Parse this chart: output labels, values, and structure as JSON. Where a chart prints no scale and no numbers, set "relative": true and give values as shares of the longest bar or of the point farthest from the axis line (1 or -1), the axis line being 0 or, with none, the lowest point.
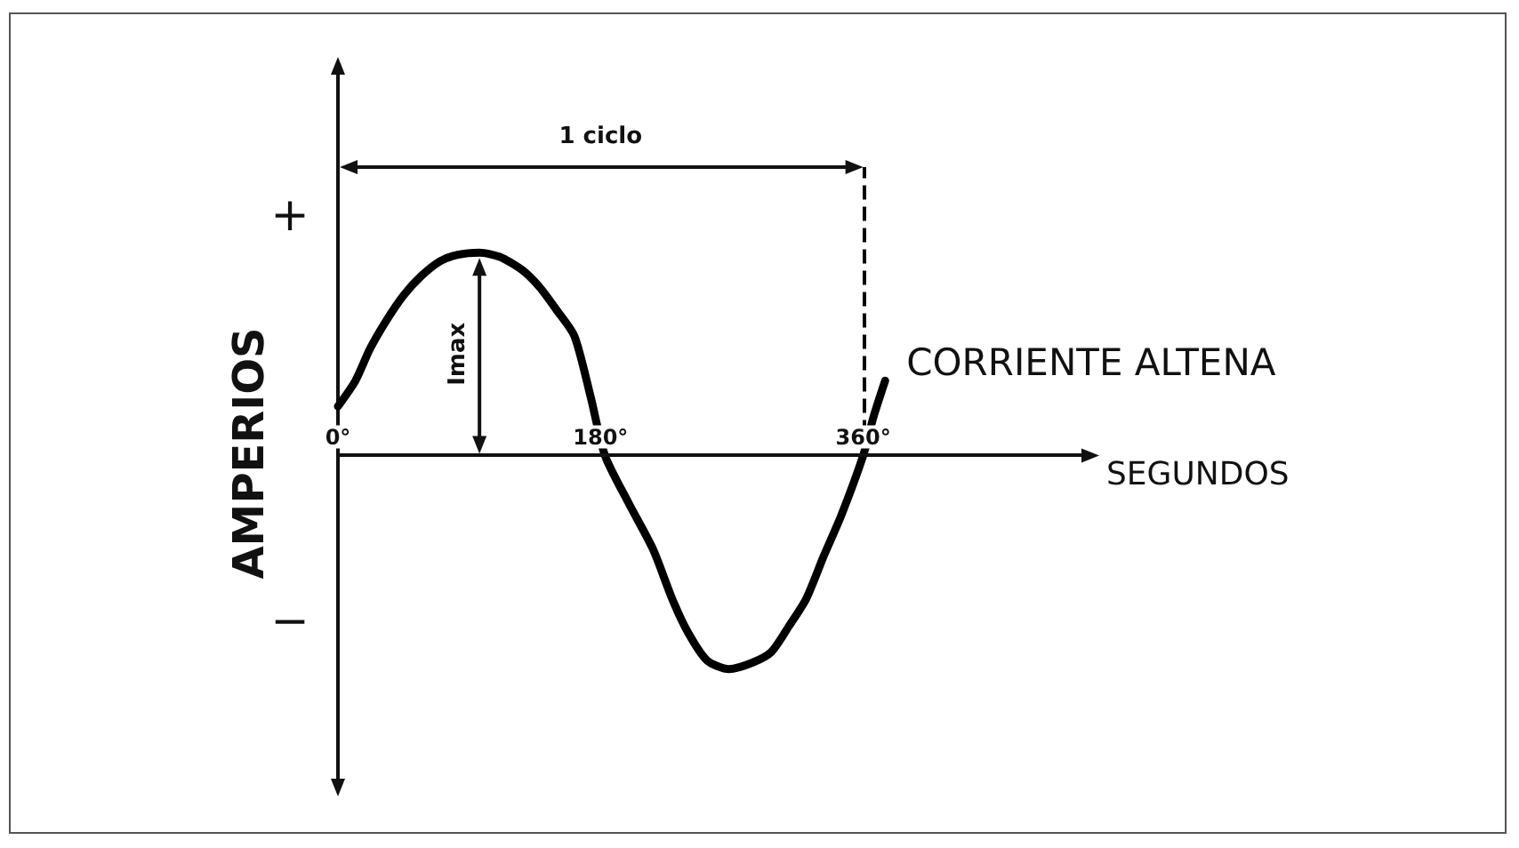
{
  "chart_data": {
    "type": "line",
    "xlabel": "SEGUNDOS",
    "ylabel": "AMPERIOS",
    "relative": true,
    "x": [
      0,
      12,
      22,
      33,
      45,
      57,
      70,
      82,
      97,
      111,
      126,
      138,
      150,
      162,
      173,
      183,
      199,
      216,
      229,
      240,
      253,
      268,
      284,
      297,
      309,
      321,
      333,
      345,
      360,
      367,
      375
    ],
    "series": [
      {
        "name": "CORRIENTE ALTENA",
        "color": "#000000",
        "values": [
          0.23,
          0.35,
          0.5,
          0.63,
          0.75,
          0.84,
          0.91,
          0.94,
          0.95,
          0.93,
          0.87,
          0.79,
          0.68,
          0.56,
          0.28,
          0,
          -0.22,
          -0.44,
          -0.67,
          -0.83,
          -0.96,
          -1,
          -0.97,
          -0.92,
          -0.8,
          -0.67,
          -0.47,
          -0.28,
          0,
          0.18,
          0.35
        ]
      }
    ],
    "xlim": [
      0,
      512
    ],
    "xticks": [
      {
        "value": 0,
        "label": "0°"
      },
      {
        "value": 180,
        "label": "180°"
      },
      {
        "value": 360,
        "label": "360°"
      }
    ],
    "tick_labels": "x",
    "ref_lines": [
      {
        "axis": "x",
        "value": 360,
        "line_style": "dashed",
        "color": "#000000"
      }
    ],
    "annotations": [
      "1 ciclo",
      "Imax",
      "+",
      "−"
    ],
    "legend": false,
    "grid": false,
    "marker": "none",
    "line_style": "solid"
  }
}
